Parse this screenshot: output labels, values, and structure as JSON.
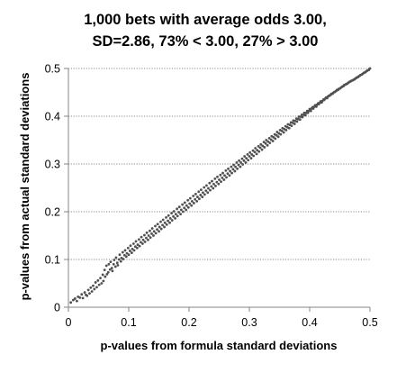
{
  "chart_data": {
    "type": "scatter",
    "title_lines": [
      "1,000 bets with average odds 3.00,",
      "SD=2.86, 73% < 3.00, 27% > 3.00"
    ],
    "xlabel": "p-values from formula standard deviations",
    "ylabel": "p-values from actual standard deviations",
    "xlim": [
      0,
      0.5
    ],
    "ylim": [
      0,
      0.5
    ],
    "x_ticks": [
      "0",
      "0.1",
      "0.2",
      "0.3",
      "0.4",
      "0.5"
    ],
    "y_ticks": [
      "0",
      "0.1",
      "0.2",
      "0.3",
      "0.4",
      "0.5"
    ],
    "grid": "horizontal dotted",
    "legend": "none",
    "point_color": "#505050",
    "points": [
      [
        0.004,
        0.01
      ],
      [
        0.008,
        0.015
      ],
      [
        0.011,
        0.018
      ],
      [
        0.014,
        0.013
      ],
      [
        0.016,
        0.022
      ],
      [
        0.019,
        0.02
      ],
      [
        0.022,
        0.027
      ],
      [
        0.024,
        0.019
      ],
      [
        0.027,
        0.031
      ],
      [
        0.029,
        0.026
      ],
      [
        0.031,
        0.024
      ],
      [
        0.033,
        0.036
      ],
      [
        0.035,
        0.029
      ],
      [
        0.037,
        0.041
      ],
      [
        0.039,
        0.033
      ],
      [
        0.041,
        0.045
      ],
      [
        0.043,
        0.038
      ],
      [
        0.045,
        0.052
      ],
      [
        0.047,
        0.042
      ],
      [
        0.049,
        0.056
      ],
      [
        0.051,
        0.047
      ],
      [
        0.053,
        0.061
      ],
      [
        0.055,
        0.05
      ],
      [
        0.057,
        0.068
      ],
      [
        0.058,
        0.055
      ],
      [
        0.06,
        0.078
      ],
      [
        0.061,
        0.064
      ],
      [
        0.063,
        0.087
      ],
      [
        0.064,
        0.069
      ],
      [
        0.066,
        0.073
      ],
      [
        0.067,
        0.09
      ],
      [
        0.069,
        0.079
      ],
      [
        0.07,
        0.095
      ],
      [
        0.072,
        0.082
      ],
      [
        0.073,
        0.076
      ],
      [
        0.075,
        0.09
      ],
      [
        0.076,
        0.099
      ],
      [
        0.078,
        0.085
      ],
      [
        0.079,
        0.104
      ],
      [
        0.081,
        0.093
      ],
      [
        0.082,
        0.088
      ],
      [
        0.084,
        0.1
      ],
      [
        0.085,
        0.11
      ],
      [
        0.087,
        0.096
      ],
      [
        0.088,
        0.103
      ],
      [
        0.09,
        0.115
      ],
      [
        0.091,
        0.101
      ],
      [
        0.093,
        0.109
      ],
      [
        0.094,
        0.119
      ],
      [
        0.096,
        0.106
      ],
      [
        0.097,
        0.113
      ],
      [
        0.099,
        0.124
      ],
      [
        0.1,
        0.11
      ],
      [
        0.102,
        0.118
      ],
      [
        0.103,
        0.129
      ],
      [
        0.105,
        0.114
      ],
      [
        0.106,
        0.122
      ],
      [
        0.108,
        0.133
      ],
      [
        0.109,
        0.119
      ],
      [
        0.111,
        0.127
      ],
      [
        0.112,
        0.138
      ],
      [
        0.114,
        0.124
      ],
      [
        0.115,
        0.131
      ],
      [
        0.117,
        0.142
      ],
      [
        0.118,
        0.128
      ],
      [
        0.12,
        0.136
      ],
      [
        0.121,
        0.147
      ],
      [
        0.123,
        0.133
      ],
      [
        0.124,
        0.141
      ],
      [
        0.126,
        0.151
      ],
      [
        0.127,
        0.137
      ],
      [
        0.129,
        0.145
      ],
      [
        0.13,
        0.156
      ],
      [
        0.132,
        0.141
      ],
      [
        0.133,
        0.15
      ],
      [
        0.135,
        0.16
      ],
      [
        0.136,
        0.146
      ],
      [
        0.138,
        0.154
      ],
      [
        0.139,
        0.165
      ],
      [
        0.141,
        0.15
      ],
      [
        0.142,
        0.159
      ],
      [
        0.144,
        0.17
      ],
      [
        0.145,
        0.155
      ],
      [
        0.147,
        0.163
      ],
      [
        0.148,
        0.174
      ],
      [
        0.15,
        0.159
      ],
      [
        0.151,
        0.168
      ],
      [
        0.153,
        0.179
      ],
      [
        0.154,
        0.164
      ],
      [
        0.156,
        0.172
      ],
      [
        0.157,
        0.183
      ],
      [
        0.159,
        0.168
      ],
      [
        0.16,
        0.177
      ],
      [
        0.162,
        0.188
      ],
      [
        0.163,
        0.173
      ],
      [
        0.165,
        0.181
      ],
      [
        0.166,
        0.192
      ],
      [
        0.168,
        0.177
      ],
      [
        0.169,
        0.186
      ],
      [
        0.171,
        0.197
      ],
      [
        0.172,
        0.182
      ],
      [
        0.174,
        0.19
      ],
      [
        0.175,
        0.201
      ],
      [
        0.177,
        0.186
      ],
      [
        0.178,
        0.195
      ],
      [
        0.18,
        0.206
      ],
      [
        0.181,
        0.191
      ],
      [
        0.183,
        0.199
      ],
      [
        0.184,
        0.21
      ],
      [
        0.186,
        0.195
      ],
      [
        0.187,
        0.204
      ],
      [
        0.189,
        0.215
      ],
      [
        0.19,
        0.2
      ],
      [
        0.192,
        0.208
      ],
      [
        0.193,
        0.219
      ],
      [
        0.195,
        0.204
      ],
      [
        0.196,
        0.213
      ],
      [
        0.198,
        0.224
      ],
      [
        0.199,
        0.209
      ],
      [
        0.201,
        0.217
      ],
      [
        0.202,
        0.228
      ],
      [
        0.204,
        0.213
      ],
      [
        0.205,
        0.222
      ],
      [
        0.207,
        0.233
      ],
      [
        0.208,
        0.218
      ],
      [
        0.21,
        0.226
      ],
      [
        0.211,
        0.237
      ],
      [
        0.213,
        0.222
      ],
      [
        0.214,
        0.231
      ],
      [
        0.216,
        0.242
      ],
      [
        0.217,
        0.227
      ],
      [
        0.219,
        0.235
      ],
      [
        0.22,
        0.246
      ],
      [
        0.222,
        0.231
      ],
      [
        0.223,
        0.24
      ],
      [
        0.225,
        0.251
      ],
      [
        0.226,
        0.236
      ],
      [
        0.228,
        0.244
      ],
      [
        0.229,
        0.255
      ],
      [
        0.231,
        0.24
      ],
      [
        0.232,
        0.249
      ],
      [
        0.234,
        0.26
      ],
      [
        0.235,
        0.245
      ],
      [
        0.237,
        0.253
      ],
      [
        0.238,
        0.264
      ],
      [
        0.24,
        0.249
      ],
      [
        0.241,
        0.258
      ],
      [
        0.243,
        0.269
      ],
      [
        0.244,
        0.254
      ],
      [
        0.246,
        0.262
      ],
      [
        0.247,
        0.273
      ],
      [
        0.249,
        0.258
      ],
      [
        0.25,
        0.267
      ],
      [
        0.252,
        0.277
      ],
      [
        0.253,
        0.263
      ],
      [
        0.255,
        0.271
      ],
      [
        0.256,
        0.281
      ],
      [
        0.258,
        0.267
      ],
      [
        0.259,
        0.276
      ],
      [
        0.261,
        0.286
      ],
      [
        0.262,
        0.272
      ],
      [
        0.264,
        0.28
      ],
      [
        0.265,
        0.29
      ],
      [
        0.267,
        0.276
      ],
      [
        0.268,
        0.285
      ],
      [
        0.27,
        0.294
      ],
      [
        0.271,
        0.281
      ],
      [
        0.273,
        0.289
      ],
      [
        0.274,
        0.298
      ],
      [
        0.276,
        0.285
      ],
      [
        0.277,
        0.294
      ],
      [
        0.279,
        0.303
      ],
      [
        0.28,
        0.29
      ],
      [
        0.282,
        0.298
      ],
      [
        0.283,
        0.307
      ],
      [
        0.285,
        0.294
      ],
      [
        0.286,
        0.303
      ],
      [
        0.288,
        0.311
      ],
      [
        0.289,
        0.299
      ],
      [
        0.291,
        0.307
      ],
      [
        0.292,
        0.316
      ],
      [
        0.294,
        0.303
      ],
      [
        0.295,
        0.312
      ],
      [
        0.297,
        0.32
      ],
      [
        0.298,
        0.308
      ],
      [
        0.3,
        0.316
      ],
      [
        0.301,
        0.324
      ],
      [
        0.303,
        0.312
      ],
      [
        0.304,
        0.32
      ],
      [
        0.306,
        0.328
      ],
      [
        0.307,
        0.317
      ],
      [
        0.309,
        0.325
      ],
      [
        0.31,
        0.333
      ],
      [
        0.312,
        0.321
      ],
      [
        0.313,
        0.329
      ],
      [
        0.315,
        0.337
      ],
      [
        0.316,
        0.326
      ],
      [
        0.318,
        0.334
      ],
      [
        0.319,
        0.341
      ],
      [
        0.321,
        0.33
      ],
      [
        0.322,
        0.338
      ],
      [
        0.324,
        0.346
      ],
      [
        0.325,
        0.335
      ],
      [
        0.327,
        0.343
      ],
      [
        0.328,
        0.35
      ],
      [
        0.33,
        0.339
      ],
      [
        0.331,
        0.347
      ],
      [
        0.333,
        0.354
      ],
      [
        0.334,
        0.344
      ],
      [
        0.336,
        0.351
      ],
      [
        0.337,
        0.358
      ],
      [
        0.339,
        0.348
      ],
      [
        0.34,
        0.356
      ],
      [
        0.342,
        0.362
      ],
      [
        0.343,
        0.353
      ],
      [
        0.345,
        0.36
      ],
      [
        0.346,
        0.367
      ],
      [
        0.348,
        0.357
      ],
      [
        0.349,
        0.364
      ],
      [
        0.351,
        0.371
      ],
      [
        0.352,
        0.362
      ],
      [
        0.354,
        0.369
      ],
      [
        0.355,
        0.375
      ],
      [
        0.357,
        0.366
      ],
      [
        0.358,
        0.373
      ],
      [
        0.36,
        0.379
      ],
      [
        0.361,
        0.371
      ],
      [
        0.363,
        0.377
      ],
      [
        0.364,
        0.383
      ],
      [
        0.366,
        0.375
      ],
      [
        0.367,
        0.382
      ],
      [
        0.369,
        0.387
      ],
      [
        0.37,
        0.38
      ],
      [
        0.372,
        0.386
      ],
      [
        0.373,
        0.391
      ],
      [
        0.375,
        0.384
      ],
      [
        0.376,
        0.39
      ],
      [
        0.378,
        0.395
      ],
      [
        0.379,
        0.389
      ],
      [
        0.381,
        0.394
      ],
      [
        0.382,
        0.399
      ],
      [
        0.384,
        0.393
      ],
      [
        0.385,
        0.399
      ],
      [
        0.387,
        0.403
      ],
      [
        0.388,
        0.398
      ],
      [
        0.39,
        0.403
      ],
      [
        0.391,
        0.407
      ],
      [
        0.393,
        0.402
      ],
      [
        0.394,
        0.407
      ],
      [
        0.396,
        0.411
      ],
      [
        0.397,
        0.407
      ],
      [
        0.399,
        0.411
      ],
      [
        0.4,
        0.415
      ],
      [
        0.402,
        0.411
      ],
      [
        0.403,
        0.416
      ],
      [
        0.405,
        0.419
      ],
      [
        0.406,
        0.416
      ],
      [
        0.408,
        0.42
      ],
      [
        0.409,
        0.423
      ],
      [
        0.411,
        0.42
      ],
      [
        0.412,
        0.424
      ],
      [
        0.414,
        0.427
      ],
      [
        0.415,
        0.425
      ],
      [
        0.417,
        0.428
      ],
      [
        0.418,
        0.431
      ],
      [
        0.42,
        0.429
      ],
      [
        0.421,
        0.432
      ],
      [
        0.423,
        0.435
      ],
      [
        0.424,
        0.434
      ],
      [
        0.426,
        0.437
      ],
      [
        0.427,
        0.439
      ],
      [
        0.429,
        0.438
      ],
      [
        0.43,
        0.441
      ],
      [
        0.432,
        0.443
      ],
      [
        0.433,
        0.443
      ],
      [
        0.435,
        0.445
      ],
      [
        0.436,
        0.447
      ],
      [
        0.438,
        0.447
      ],
      [
        0.439,
        0.449
      ],
      [
        0.441,
        0.451
      ],
      [
        0.442,
        0.451
      ],
      [
        0.444,
        0.453
      ],
      [
        0.445,
        0.455
      ],
      [
        0.447,
        0.455
      ],
      [
        0.448,
        0.457
      ],
      [
        0.45,
        0.458
      ],
      [
        0.451,
        0.459
      ],
      [
        0.453,
        0.461
      ],
      [
        0.454,
        0.462
      ],
      [
        0.456,
        0.463
      ],
      [
        0.457,
        0.465
      ],
      [
        0.459,
        0.466
      ],
      [
        0.46,
        0.467
      ],
      [
        0.462,
        0.468
      ],
      [
        0.463,
        0.469
      ],
      [
        0.465,
        0.471
      ],
      [
        0.466,
        0.472
      ],
      [
        0.468,
        0.473
      ],
      [
        0.469,
        0.474
      ],
      [
        0.471,
        0.475
      ],
      [
        0.472,
        0.476
      ],
      [
        0.474,
        0.477
      ],
      [
        0.475,
        0.478
      ],
      [
        0.477,
        0.48
      ],
      [
        0.478,
        0.481
      ],
      [
        0.48,
        0.482
      ],
      [
        0.481,
        0.483
      ],
      [
        0.483,
        0.485
      ],
      [
        0.484,
        0.486
      ],
      [
        0.486,
        0.487
      ],
      [
        0.487,
        0.488
      ],
      [
        0.489,
        0.49
      ],
      [
        0.49,
        0.491
      ],
      [
        0.492,
        0.492
      ],
      [
        0.493,
        0.493
      ],
      [
        0.495,
        0.495
      ],
      [
        0.496,
        0.496
      ],
      [
        0.498,
        0.497
      ],
      [
        0.499,
        0.499
      ],
      [
        0.5,
        0.5
      ]
    ]
  }
}
